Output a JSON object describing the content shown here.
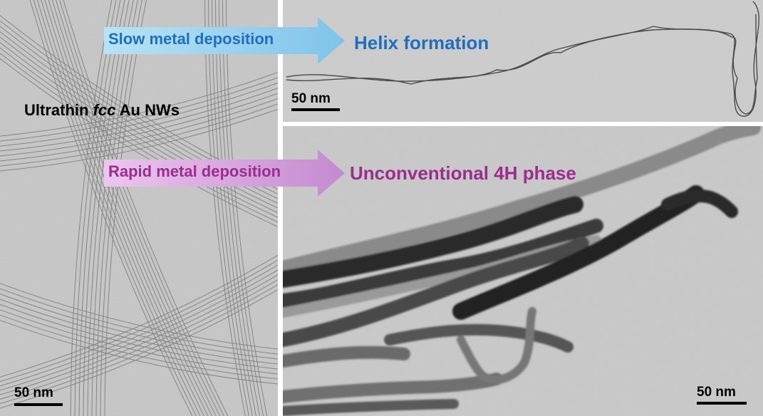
{
  "panels": {
    "left": {
      "title_prefix": "Ultrathin ",
      "title_italic": "fcc",
      "title_suffix": " Au NWs",
      "scale": "50 nm"
    },
    "top_right": {
      "scale": "50 nm"
    },
    "bottom_right": {
      "scale": "50 nm"
    }
  },
  "arrows": {
    "slow": {
      "label": "Slow metal deposition",
      "result": "Helix formation",
      "label_color": "#1f6fc0",
      "result_color": "#1f6fc0"
    },
    "rapid": {
      "label": "Rapid metal deposition",
      "result": "Unconventional 4H phase",
      "label_color": "#9b2d8e",
      "result_color": "#9b2d8e"
    }
  }
}
